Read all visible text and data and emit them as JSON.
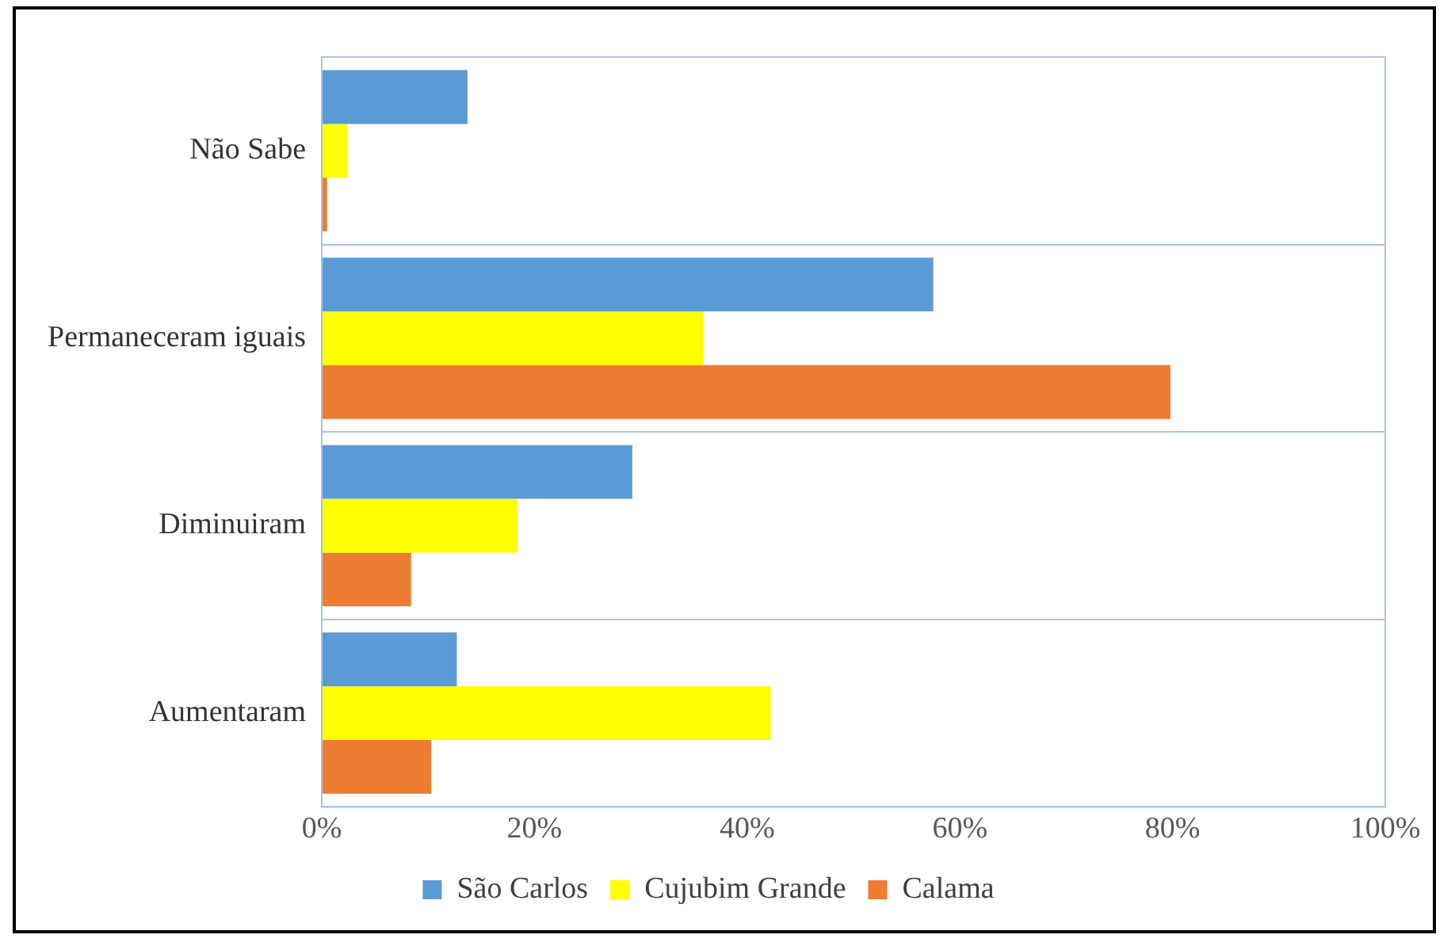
{
  "chart_data": {
    "type": "bar",
    "orientation": "horizontal",
    "categories": [
      "Não Sabe",
      "Permaneceram iguais",
      "Diminuiram",
      "Aumentaram"
    ],
    "series": [
      {
        "name": "São Carlos",
        "color": "#5b9bd5",
        "values": [
          13.7,
          57.5,
          29.2,
          12.7
        ]
      },
      {
        "name": "Cujubim Grande",
        "color": "#ffff00",
        "values": [
          2.4,
          35.9,
          18.4,
          42.2
        ]
      },
      {
        "name": "Calama",
        "color": "#ed7d31",
        "values": [
          0.5,
          79.8,
          8.4,
          10.3
        ]
      }
    ],
    "xlim": [
      0,
      100
    ],
    "xticks": [
      {
        "value": 0,
        "label": "0%"
      },
      {
        "value": 20,
        "label": "20%"
      },
      {
        "value": 40,
        "label": "40%"
      },
      {
        "value": 60,
        "label": "60%"
      },
      {
        "value": 80,
        "label": "80%"
      },
      {
        "value": 100,
        "label": "100%"
      }
    ],
    "grid": "y",
    "legend": "bottom"
  }
}
